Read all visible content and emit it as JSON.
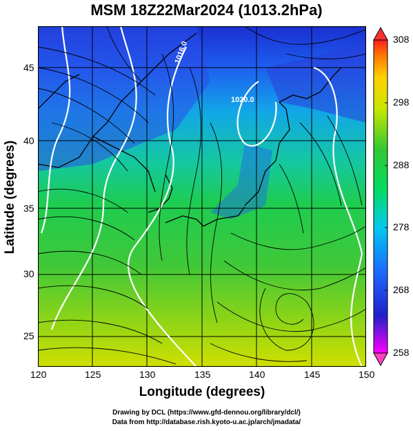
{
  "title": "MSM 18Z22Mar2024 (1013.2hPa)",
  "axes": {
    "xlabel": "Longitude (degrees)",
    "ylabel": "Latitude  (degrees)",
    "xticks": [
      "120",
      "125",
      "130",
      "135",
      "140",
      "145",
      "150"
    ],
    "yticks": [
      "25",
      "30",
      "35",
      "40",
      "45"
    ]
  },
  "colorbar": {
    "ticks": [
      "308",
      "298",
      "288",
      "278",
      "268",
      "258"
    ],
    "range": [
      258,
      308
    ],
    "colors": [
      "#ff00ff",
      "#2020c8",
      "#1e64ff",
      "#00c8f0",
      "#00dc64",
      "#32c832",
      "#c8e600",
      "#ffd200",
      "#ff7800",
      "#ff1e1e"
    ]
  },
  "contour_labels": [
    "1016.0",
    "1020.0"
  ],
  "credits": {
    "line1": "Drawing by DCL (https://www.gfd-dennou.org/library/dcl/)",
    "line2": "Data from http://database.rish.kyoto-u.ac.jp/arch/jmadata/"
  },
  "colors": {
    "land_outline": "#000000",
    "contour": "#ffffff",
    "streamline": "#000000"
  }
}
